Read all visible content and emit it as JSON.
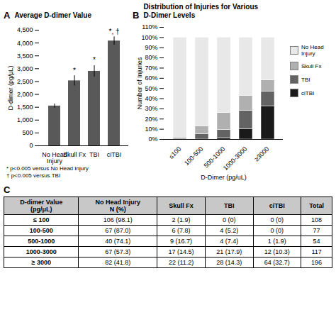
{
  "chart_data": [
    {
      "panel": "A",
      "type": "bar",
      "title": "Average D-dimer Value",
      "categories": [
        "No Head\nInjury",
        "Skull Fx",
        "TBI",
        "ciTBI"
      ],
      "values": [
        1550,
        2530,
        2900,
        4080
      ],
      "errors": [
        80,
        200,
        220,
        160
      ],
      "color": "#595959",
      "ylabel": "D-dimer (pg/μL)",
      "ylim": [
        0,
        4500
      ],
      "yticks": [
        0,
        500,
        {
          "value": 1000,
          "label": "1,000"
        },
        {
          "value": 1500,
          "label": "1,500"
        },
        {
          "value": 2000,
          "label": "2,000"
        },
        {
          "value": 2500,
          "label": "2,500"
        },
        {
          "value": 3000,
          "label": "3,000"
        },
        {
          "value": 3500,
          "label": "3,500"
        },
        {
          "value": 4000,
          "label": "4,000"
        },
        {
          "value": 4500,
          "label": "4,500"
        }
      ],
      "annotations": [
        {
          "category": "Skull Fx",
          "text": "*"
        },
        {
          "category": "TBI",
          "text": "*"
        },
        {
          "category": "ciTBI",
          "text": "*, †"
        }
      ],
      "notes": [
        "* p<0.005 versus No Head Injury",
        "† p<0.005 versus TBI"
      ]
    },
    {
      "panel": "B",
      "type": "bar",
      "stacked": true,
      "title": "Distribution of Injuries for Various\nD-Dimer Levels",
      "xlabel": "D-Dimer (pg/uL)",
      "ylabel": "Number of Injuries",
      "categories": [
        "≤100",
        "100-500",
        "500-1000",
        "1000-3000",
        "≥3000"
      ],
      "series": [
        {
          "name": "ciTBI",
          "color": "#1a1a1a",
          "values": [
            0.0,
            0.0,
            1.9,
            10.3,
            32.7
          ]
        },
        {
          "name": "TBI",
          "color": "#636363",
          "values": [
            0.0,
            5.2,
            7.4,
            17.9,
            14.3
          ]
        },
        {
          "name": "Skull Fx",
          "color": "#b0b0b0",
          "values": [
            1.9,
            7.8,
            16.7,
            14.5,
            11.2
          ]
        },
        {
          "name": "No Head\nInjury",
          "color": "#e8e8e8",
          "values": [
            98.1,
            87.0,
            74.1,
            57.3,
            41.8
          ]
        }
      ],
      "ylim": [
        0,
        110
      ],
      "yticks": [
        {
          "value": 0,
          "label": "0%"
        },
        {
          "value": 10,
          "label": "10%"
        },
        {
          "value": 20,
          "label": "20%"
        },
        {
          "value": 30,
          "label": "30%"
        },
        {
          "value": 40,
          "label": "40%"
        },
        {
          "value": 50,
          "label": "50%"
        },
        {
          "value": 60,
          "label": "60%"
        },
        {
          "value": 70,
          "label": "70%"
        },
        {
          "value": 80,
          "label": "80%"
        },
        {
          "value": 90,
          "label": "90%"
        },
        {
          "value": 100,
          "label": "100%"
        },
        {
          "value": 110,
          "label": "110%"
        }
      ],
      "legend": "right"
    },
    {
      "panel": "C",
      "type": "table",
      "color": "#c8c8c8",
      "header": [
        "D-dimer Value\n(pg/μL)",
        "No Head Injury\nN (%)",
        "Skull Fx",
        "TBI",
        "ciTBI",
        "Total"
      ],
      "rows": [
        [
          "≤ 100",
          "106 (98.1)",
          "2 (1.9)",
          "0 (0)",
          "0 (0)",
          "108"
        ],
        [
          "100-500",
          "67 (87.0)",
          "6 (7.8)",
          "4 (5.2)",
          "0 (0)",
          "77"
        ],
        [
          "500-1000",
          "40 (74.1)",
          "9 (16.7)",
          "4 (7.4)",
          "1 (1.9)",
          "54"
        ],
        [
          "1000-3000",
          "67 (57.3)",
          "17 (14.5)",
          "21 (17.9)",
          "12 (10.3)",
          "117"
        ],
        [
          "≥ 3000",
          "82 (41.8)",
          "22 (11.2)",
          "28 (14.3)",
          "64 (32.7)",
          "196"
        ]
      ]
    }
  ]
}
